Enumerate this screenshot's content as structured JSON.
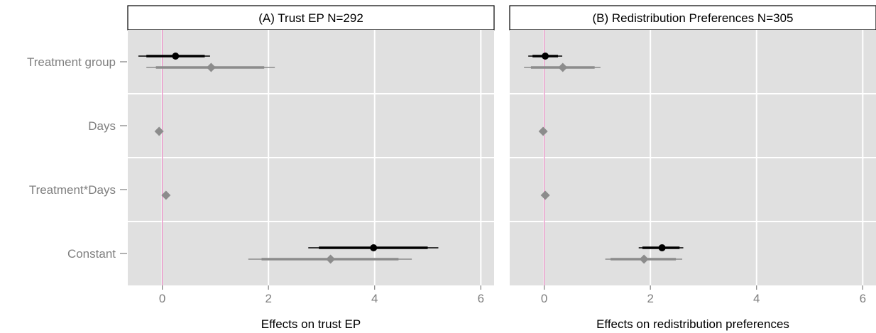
{
  "chart_data": {
    "type": "coefficient-plot",
    "categories": [
      "Treatment group",
      "Days",
      "Treatment*Days",
      "Constant"
    ],
    "xlim": [
      -0.65,
      6.25
    ],
    "xticks": [
      0,
      2,
      4,
      6
    ],
    "reference_line_x": 0,
    "colors": {
      "panel_bg": "#e0e0e0",
      "grid": "#ffffff",
      "reference_line": "#e78ac3",
      "series_black": "#000000",
      "series_grey": "#8c8c8c"
    },
    "panels": [
      {
        "title": "(A) Trust EP N=292",
        "xlabel": "Effects on trust EP",
        "series": [
          {
            "marker": "circle",
            "color": "#000000",
            "points": [
              {
                "category": "Treatment group",
                "estimate": 0.25,
                "ci90": [
                  -0.3,
                  0.8
                ],
                "ci95": [
                  -0.45,
                  0.9
                ]
              },
              {
                "category": "Constant",
                "estimate": 3.98,
                "ci90": [
                  2.95,
                  5.0
                ],
                "ci95": [
                  2.75,
                  5.2
                ]
              }
            ]
          },
          {
            "marker": "diamond",
            "color": "#8c8c8c",
            "points": [
              {
                "category": "Treatment group",
                "estimate": 0.92,
                "ci90": [
                  -0.12,
                  1.92
                ],
                "ci95": [
                  -0.3,
                  2.12
                ]
              },
              {
                "category": "Days",
                "estimate": -0.06,
                "ci90": [
                  -0.08,
                  -0.04
                ],
                "ci95": [
                  -0.09,
                  -0.03
                ]
              },
              {
                "category": "Treatment*Days",
                "estimate": 0.07,
                "ci90": [
                  0.05,
                  0.09
                ],
                "ci95": [
                  0.04,
                  0.1
                ]
              },
              {
                "category": "Constant",
                "estimate": 3.17,
                "ci90": [
                  1.87,
                  4.45
                ],
                "ci95": [
                  1.62,
                  4.7
                ]
              }
            ]
          }
        ]
      },
      {
        "title": "(B) Redistribution Preferences N=305",
        "xlabel": "Effects on redistribution preferences",
        "series": [
          {
            "marker": "circle",
            "color": "#000000",
            "points": [
              {
                "category": "Treatment group",
                "estimate": 0.02,
                "ci90": [
                  -0.22,
                  0.26
                ],
                "ci95": [
                  -0.3,
                  0.34
                ]
              },
              {
                "category": "Constant",
                "estimate": 2.22,
                "ci90": [
                  1.85,
                  2.55
                ],
                "ci95": [
                  1.78,
                  2.62
                ]
              }
            ]
          },
          {
            "marker": "diamond",
            "color": "#8c8c8c",
            "points": [
              {
                "category": "Treatment group",
                "estimate": 0.35,
                "ci90": [
                  -0.25,
                  0.95
                ],
                "ci95": [
                  -0.38,
                  1.06
                ]
              },
              {
                "category": "Days",
                "estimate": -0.02,
                "ci90": [
                  -0.04,
                  0.0
                ],
                "ci95": [
                  -0.05,
                  0.01
                ]
              },
              {
                "category": "Treatment*Days",
                "estimate": 0.02,
                "ci90": [
                  0.0,
                  0.04
                ],
                "ci95": [
                  -0.01,
                  0.05
                ]
              },
              {
                "category": "Constant",
                "estimate": 1.88,
                "ci90": [
                  1.25,
                  2.48
                ],
                "ci95": [
                  1.15,
                  2.6
                ]
              }
            ]
          }
        ]
      }
    ]
  }
}
